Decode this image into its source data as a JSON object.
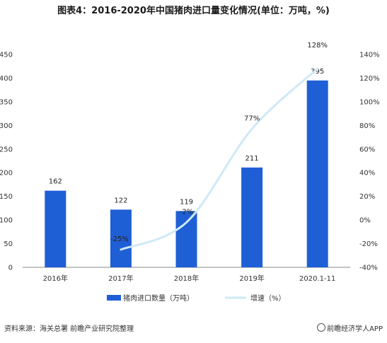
{
  "title": "图表4：2016-2020年中国猪肉进口量变化情况(单位：万吨，%)",
  "footer": {
    "source": "资料来源：海关总署 前瞻产业研究院整理",
    "brand": "@前瞻经济学人APP"
  },
  "colors": {
    "bar": "#1f5fd6",
    "line": "#cfe9f6",
    "axis": "#888888"
  },
  "chart_data": {
    "type": "bar",
    "categories": [
      "2016年",
      "2017年",
      "2018年",
      "2019年",
      "2020.1-11"
    ],
    "series": [
      {
        "name": "猪肉进口数量（万吨）",
        "kind": "bar",
        "axis": "left",
        "values": [
          162,
          122,
          119,
          211,
          395
        ],
        "labels": [
          "162",
          "122",
          "119",
          "211",
          "395"
        ]
      },
      {
        "name": "增速（%）",
        "kind": "line",
        "axis": "right",
        "values": [
          null,
          -25,
          -2,
          77,
          128
        ],
        "labels": [
          "",
          "-25%",
          "-2%",
          "77%",
          "128%"
        ]
      }
    ],
    "y_left": {
      "min": 0,
      "max": 450,
      "ticks": [
        "0",
        "50",
        "100",
        "150",
        "200",
        "250",
        "300",
        "350",
        "400",
        "450"
      ]
    },
    "y_right": {
      "min": -40,
      "max": 140,
      "ticks": [
        "-40%",
        "-20%",
        "0%",
        "20%",
        "40%",
        "60%",
        "80%",
        "100%",
        "120%",
        "140%"
      ]
    },
    "grid": false,
    "legend": "bottom"
  }
}
